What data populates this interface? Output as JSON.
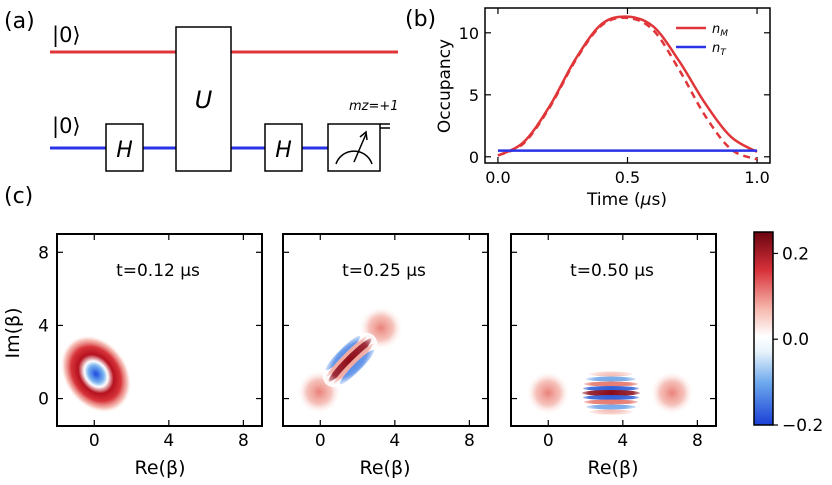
{
  "panel_labels": {
    "a": "(a)",
    "b": "(b)",
    "c": "(c)"
  },
  "circuit": {
    "top_ket": "|0⟩",
    "bottom_ket": "|0⟩",
    "gate_h1": "H",
    "gate_u": "U",
    "gate_h2": "H",
    "measure_label": "mz=+1",
    "top_wire_color": "#e0363a",
    "bottom_wire_color": "#2a33e8"
  },
  "chart_data": [
    {
      "type": "line",
      "panel": "(b)",
      "title": "",
      "xlabel": "Time (μs)",
      "ylabel": "Occupancy",
      "xlim": [
        -0.05,
        1.05
      ],
      "ylim": [
        -0.5,
        12
      ],
      "x_ticks": [
        "0.0",
        "0.5",
        "1.0"
      ],
      "y_ticks": [
        "0",
        "5",
        "10"
      ],
      "legend": {
        "placement": "top-right",
        "entries": [
          "n_M",
          "n_T"
        ]
      },
      "series": [
        {
          "name": "n_M",
          "color": "#e0363a",
          "style": "solid",
          "x": [
            0.0,
            0.1,
            0.2,
            0.3,
            0.4,
            0.5,
            0.6,
            0.7,
            0.8,
            0.9,
            1.0
          ],
          "y": [
            0.1,
            1.2,
            4.1,
            7.9,
            10.7,
            11.3,
            10.5,
            7.7,
            4.3,
            1.6,
            0.4
          ]
        },
        {
          "name": "n_M (dashed)",
          "color": "#e0363a",
          "style": "dashed",
          "x": [
            0.0,
            0.1,
            0.2,
            0.3,
            0.4,
            0.5,
            0.6,
            0.7,
            0.8,
            0.9,
            1.0
          ],
          "y": [
            0.1,
            1.1,
            4.0,
            7.8,
            10.6,
            11.2,
            10.2,
            7.0,
            3.3,
            0.6,
            -0.2
          ]
        },
        {
          "name": "n_T",
          "color": "#2a33e8",
          "style": "solid",
          "x": [
            0.0,
            0.5,
            1.0
          ],
          "y": [
            0.5,
            0.5,
            0.5
          ]
        }
      ]
    },
    {
      "type": "heatmap",
      "panel": "(c)",
      "xlabel": "Re(β)",
      "ylabel": "Im(β)",
      "xlim": [
        -2,
        9
      ],
      "ylim": [
        -1.5,
        9
      ],
      "x_ticks": [
        "0",
        "4",
        "8"
      ],
      "y_ticks": [
        "0",
        "4",
        "8"
      ],
      "colorbar": {
        "min": -0.2,
        "max": 0.25,
        "ticks": [
          "0.2",
          "0.0",
          "−0.2"
        ]
      },
      "plots": [
        {
          "label": "t=0.12 μs",
          "description": "single squeezed blob near (0.5,1)"
        },
        {
          "label": "t=0.25 μs",
          "description": "two blobs at (0,0) and (3.5,3.5) with fringes between"
        },
        {
          "label": "t=0.50 μs",
          "description": "cat state blobs at (0,0) and (6.8,0) with fringes at (3.5,0)"
        }
      ]
    }
  ]
}
